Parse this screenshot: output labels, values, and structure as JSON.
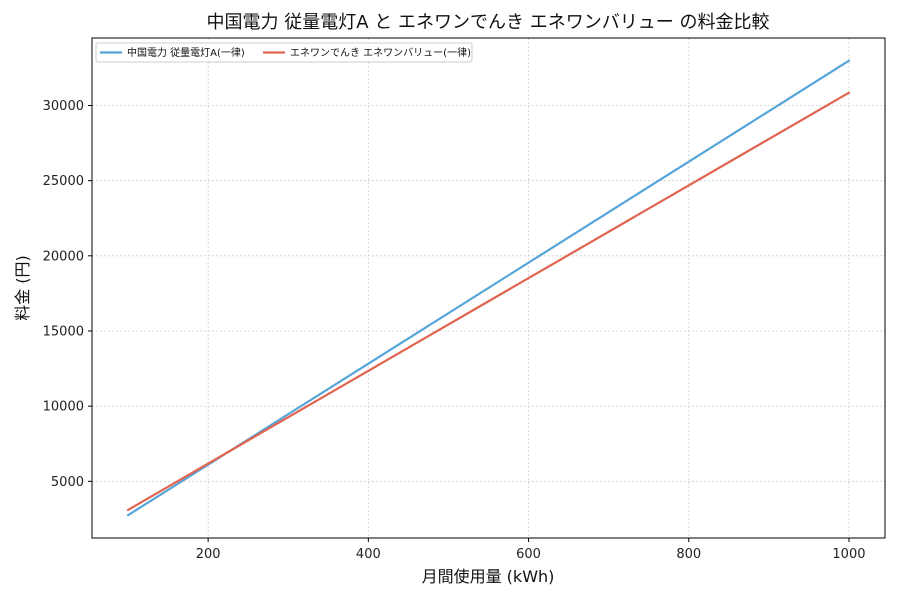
{
  "chart_data": {
    "type": "line",
    "title": "中国電力 従量電灯A と エネワンでんき エネワンバリュー の料金比較",
    "xlabel": "月間使用量 (kWh)",
    "ylabel": "料金 (円)",
    "xlim": [
      55,
      1045
    ],
    "ylim": [
      1230,
      34490
    ],
    "xticks": [
      200,
      400,
      600,
      800,
      1000
    ],
    "yticks": [
      5000,
      10000,
      15000,
      20000,
      25000,
      30000
    ],
    "grid": true,
    "legend_position": "top-left",
    "x": [
      100,
      1000
    ],
    "series": [
      {
        "name": "中国電力 従量電灯A(一律)",
        "color": "#55a5d9",
        "values": [
          2750,
          32980
        ]
      },
      {
        "name": "エネワンでんき エネワンバリュー(一律)",
        "color": "#e0644f",
        "values": [
          3100,
          30850
        ]
      }
    ]
  }
}
